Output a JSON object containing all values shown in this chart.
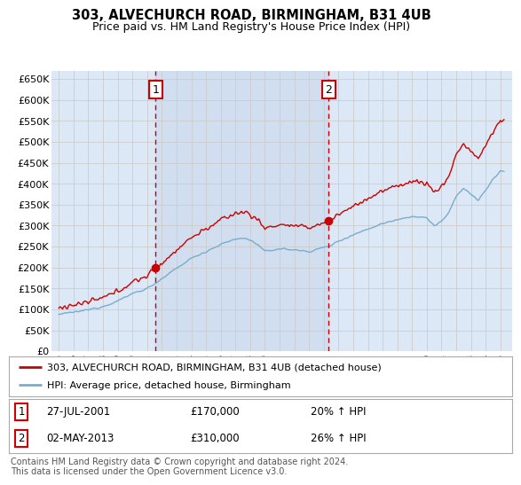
{
  "title": "303, ALVECHURCH ROAD, BIRMINGHAM, B31 4UB",
  "subtitle": "Price paid vs. HM Land Registry's House Price Index (HPI)",
  "fig_bg_color": "#f5f5f5",
  "plot_bg_color": "#dce8f5",
  "shade_color": "#c8d8ee",
  "grid_color": "#cccccc",
  "sale1_date": "27-JUL-2001",
  "sale1_price": 170000,
  "sale1_hpi": "20%",
  "sale1_x": 2001.57,
  "sale2_date": "02-MAY-2013",
  "sale2_price": 310000,
  "sale2_hpi": "26%",
  "sale2_x": 2013.34,
  "legend_line1": "303, ALVECHURCH ROAD, BIRMINGHAM, B31 4UB (detached house)",
  "legend_line2": "HPI: Average price, detached house, Birmingham",
  "footnote": "Contains HM Land Registry data © Crown copyright and database right 2024.\nThis data is licensed under the Open Government Licence v3.0.",
  "ylim": [
    0,
    670000
  ],
  "yticks": [
    0,
    50000,
    100000,
    150000,
    200000,
    250000,
    300000,
    350000,
    400000,
    450000,
    500000,
    550000,
    600000,
    650000
  ],
  "ytick_labels": [
    "£0",
    "£50K",
    "£100K",
    "£150K",
    "£200K",
    "£250K",
    "£300K",
    "£350K",
    "£400K",
    "£450K",
    "£500K",
    "£550K",
    "£600K",
    "£650K"
  ],
  "xlim": [
    1994.5,
    2025.8
  ],
  "xtick_years": [
    1995,
    1996,
    1997,
    1998,
    1999,
    2000,
    2001,
    2002,
    2003,
    2004,
    2005,
    2006,
    2007,
    2008,
    2009,
    2010,
    2011,
    2012,
    2013,
    2014,
    2015,
    2016,
    2017,
    2018,
    2019,
    2020,
    2021,
    2022,
    2023,
    2024,
    2025
  ],
  "xtick_labels": [
    "95",
    "96",
    "97",
    "98",
    "99",
    "00",
    "01",
    "02",
    "03",
    "04",
    "05",
    "06",
    "07",
    "08",
    "09",
    "10",
    "11",
    "12",
    "13",
    "14",
    "15",
    "16",
    "17",
    "18",
    "19",
    "20",
    "21",
    "22",
    "23",
    "24",
    "25"
  ],
  "red_color": "#cc0000",
  "blue_color": "#7aaccc",
  "dashed_color": "#cc0000",
  "dot_color": "#cc0000"
}
